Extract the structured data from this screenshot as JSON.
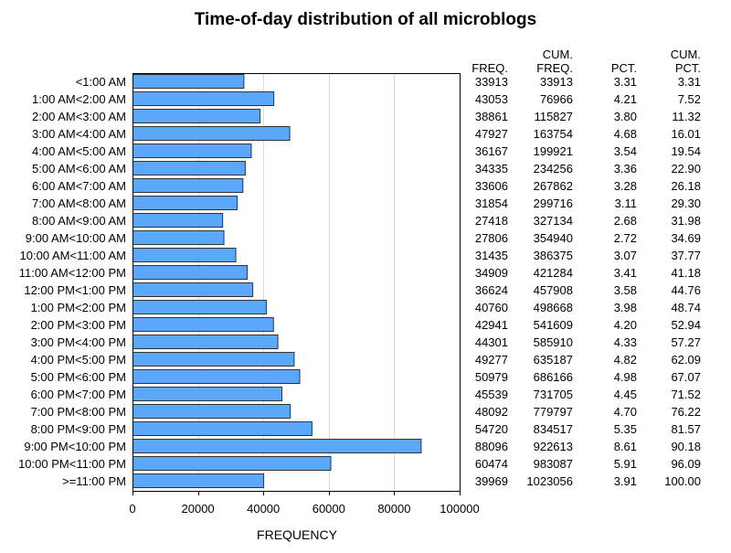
{
  "chart_data": {
    "type": "bar",
    "orientation": "horizontal",
    "title": "Time-of-day distribution of all microblogs",
    "xlabel": "FREQUENCY",
    "ylabel": "",
    "xlim": [
      0,
      100000
    ],
    "xticks": [
      0,
      20000,
      40000,
      60000,
      80000,
      100000
    ],
    "grid": "vertical",
    "bar_color": "#5aa7fb",
    "categories": [
      "<1:00 AM",
      "1:00 AM<2:00 AM",
      "2:00 AM<3:00 AM",
      "3:00 AM<4:00 AM",
      "4:00 AM<5:00 AM",
      "5:00 AM<6:00 AM",
      "6:00 AM<7:00 AM",
      "7:00 AM<8:00 AM",
      "8:00 AM<9:00 AM",
      "9:00 AM<10:00 AM",
      "10:00 AM<11:00 AM",
      "11:00 AM<12:00 PM",
      "12:00 PM<1:00 PM",
      "1:00 PM<2:00 PM",
      "2:00 PM<3:00 PM",
      "3:00 PM<4:00 PM",
      "4:00 PM<5:00 PM",
      "5:00 PM<6:00 PM",
      "6:00 PM<7:00 PM",
      "7:00 PM<8:00 PM",
      "8:00 PM<9:00 PM",
      "9:00 PM<10:00 PM",
      "10:00 PM<11:00 PM",
      ">=11:00 PM"
    ],
    "values": [
      33913,
      43053,
      38861,
      47927,
      36167,
      34335,
      33606,
      31854,
      27418,
      27806,
      31435,
      34909,
      36624,
      40760,
      42941,
      44301,
      49277,
      50979,
      45539,
      48092,
      54720,
      88096,
      60474,
      39969
    ],
    "table": {
      "headers": [
        [
          "",
          "FREQ."
        ],
        [
          "CUM.",
          "FREQ."
        ],
        [
          "",
          "PCT."
        ],
        [
          "CUM.",
          "PCT."
        ]
      ],
      "rows": [
        [
          "33913",
          "33913",
          "3.31",
          "3.31"
        ],
        [
          "43053",
          "76966",
          "4.21",
          "7.52"
        ],
        [
          "38861",
          "115827",
          "3.80",
          "11.32"
        ],
        [
          "47927",
          "163754",
          "4.68",
          "16.01"
        ],
        [
          "36167",
          "199921",
          "3.54",
          "19.54"
        ],
        [
          "34335",
          "234256",
          "3.36",
          "22.90"
        ],
        [
          "33606",
          "267862",
          "3.28",
          "26.18"
        ],
        [
          "31854",
          "299716",
          "3.11",
          "29.30"
        ],
        [
          "27418",
          "327134",
          "2.68",
          "31.98"
        ],
        [
          "27806",
          "354940",
          "2.72",
          "34.69"
        ],
        [
          "31435",
          "386375",
          "3.07",
          "37.77"
        ],
        [
          "34909",
          "421284",
          "3.41",
          "41.18"
        ],
        [
          "36624",
          "457908",
          "3.58",
          "44.76"
        ],
        [
          "40760",
          "498668",
          "3.98",
          "48.74"
        ],
        [
          "42941",
          "541609",
          "4.20",
          "52.94"
        ],
        [
          "44301",
          "585910",
          "4.33",
          "57.27"
        ],
        [
          "49277",
          "635187",
          "4.82",
          "62.09"
        ],
        [
          "50979",
          "686166",
          "4.98",
          "67.07"
        ],
        [
          "45539",
          "731705",
          "4.45",
          "71.52"
        ],
        [
          "48092",
          "779797",
          "4.70",
          "76.22"
        ],
        [
          "54720",
          "834517",
          "5.35",
          "81.57"
        ],
        [
          "88096",
          "922613",
          "8.61",
          "90.18"
        ],
        [
          "60474",
          "983087",
          "5.91",
          "96.09"
        ],
        [
          "39969",
          "1023056",
          "3.91",
          "100.00"
        ]
      ]
    }
  }
}
